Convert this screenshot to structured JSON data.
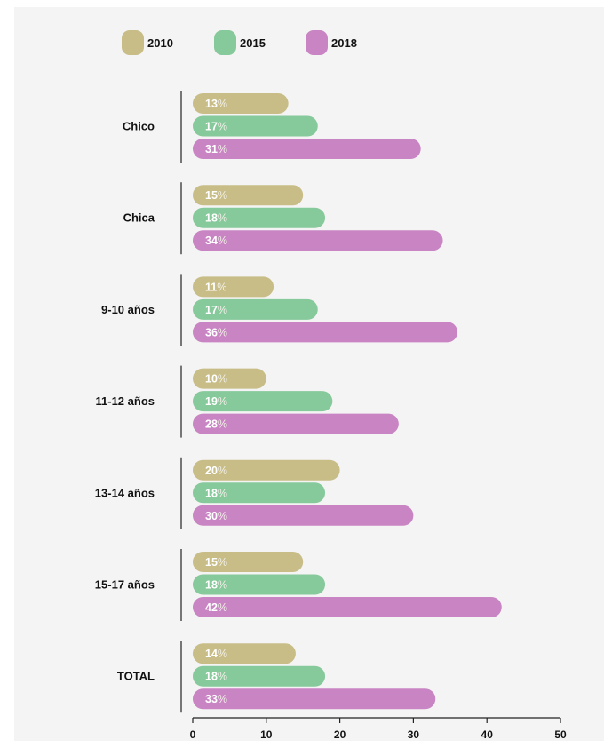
{
  "colors": {
    "background": "#f5f4f4",
    "2010": "#c8bd87",
    "2015": "#86c99b",
    "2018": "#c884c3",
    "axis": "#222222"
  },
  "legend": [
    {
      "label": "2010",
      "color_key": "2010"
    },
    {
      "label": "2015",
      "color_key": "2015"
    },
    {
      "label": "2018",
      "color_key": "2018"
    }
  ],
  "chart_data": {
    "type": "bar",
    "orientation": "horizontal",
    "categories": [
      "Chico",
      "Chica",
      "9-10 años",
      "11-12 años",
      "13-14 años",
      "15-17 años",
      "TOTAL"
    ],
    "series": [
      {
        "name": "2010",
        "values": [
          13,
          15,
          11,
          10,
          20,
          15,
          14
        ]
      },
      {
        "name": "2015",
        "values": [
          17,
          18,
          17,
          19,
          18,
          18,
          18
        ]
      },
      {
        "name": "2018",
        "values": [
          31,
          34,
          36,
          28,
          30,
          42,
          33
        ]
      }
    ],
    "value_suffix": "%",
    "xlim": [
      0,
      50
    ],
    "xticks": [
      "0",
      "10",
      "20",
      "30",
      "40",
      "50"
    ],
    "legend_position": "top",
    "grid": false
  }
}
